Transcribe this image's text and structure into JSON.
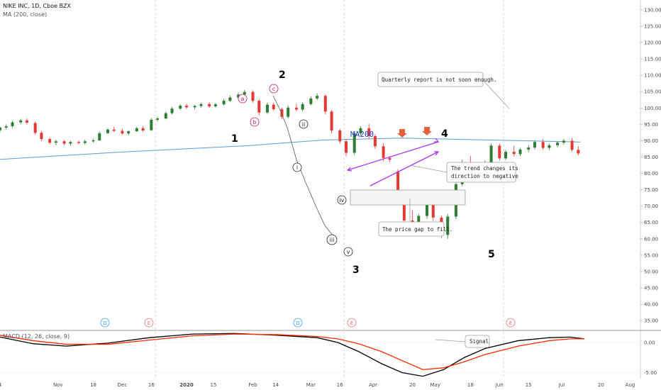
{
  "header": {
    "symbol_line": "NIKE INC, 1D, Cboe BZX",
    "ma_line": "MA (200, close)",
    "macd_line": "MACD (12, 26, close, 9)"
  },
  "chart_data": [
    {
      "type": "candlestick",
      "title": "NIKE INC, 1D, Cboe BZX",
      "ylim": [
        32,
        133
      ],
      "y_ticks": [
        "130.00",
        "125.00",
        "120.00",
        "115.00",
        "110.00",
        "105.00",
        "100.00",
        "95.00",
        "90.00",
        "85.00",
        "80.00",
        "75.00",
        "70.00",
        "65.00",
        "60.00",
        "55.00",
        "50.00",
        "45.00",
        "40.00",
        "35.00"
      ],
      "x_ticks": [
        "4",
        "Nov",
        "18",
        "Dec",
        "16",
        "2020",
        "15",
        "Feb",
        "14",
        "Mar",
        "16",
        "Apr",
        "20",
        "May",
        "18",
        "Jun",
        "15",
        "Jul",
        "20",
        "Aug"
      ],
      "x_range": [
        "2019-10-04",
        "2020-08-08"
      ],
      "candles": [
        {
          "d": "2019-10-04",
          "o": 93.2,
          "h": 94.4,
          "l": 92.6,
          "c": 94.0
        },
        {
          "d": "2019-10-07",
          "o": 94.0,
          "h": 95.0,
          "l": 93.4,
          "c": 94.4
        },
        {
          "d": "2019-10-10",
          "o": 94.4,
          "h": 96.1,
          "l": 93.9,
          "c": 95.6
        },
        {
          "d": "2019-10-14",
          "o": 95.6,
          "h": 96.7,
          "l": 95.0,
          "c": 96.2
        },
        {
          "d": "2019-10-17",
          "o": 96.2,
          "h": 96.8,
          "l": 95.0,
          "c": 95.5
        },
        {
          "d": "2019-10-21",
          "o": 95.4,
          "h": 95.9,
          "l": 91.8,
          "c": 92.4
        },
        {
          "d": "2019-10-24",
          "o": 92.4,
          "h": 92.9,
          "l": 89.9,
          "c": 90.5
        },
        {
          "d": "2019-10-28",
          "o": 90.5,
          "h": 91.0,
          "l": 88.9,
          "c": 89.4
        },
        {
          "d": "2019-10-31",
          "o": 89.4,
          "h": 90.3,
          "l": 88.6,
          "c": 89.8
        },
        {
          "d": "2019-11-04",
          "o": 89.8,
          "h": 90.2,
          "l": 88.6,
          "c": 89.1
        },
        {
          "d": "2019-11-07",
          "o": 89.1,
          "h": 90.0,
          "l": 88.5,
          "c": 89.6
        },
        {
          "d": "2019-11-11",
          "o": 89.6,
          "h": 90.0,
          "l": 88.9,
          "c": 89.3
        },
        {
          "d": "2019-11-14",
          "o": 89.3,
          "h": 90.3,
          "l": 88.8,
          "c": 89.8
        },
        {
          "d": "2019-11-18",
          "o": 89.8,
          "h": 90.6,
          "l": 89.4,
          "c": 90.1
        },
        {
          "d": "2019-11-21",
          "o": 90.1,
          "h": 92.8,
          "l": 89.9,
          "c": 92.3
        },
        {
          "d": "2019-11-25",
          "o": 92.3,
          "h": 93.8,
          "l": 92.0,
          "c": 93.4
        },
        {
          "d": "2019-11-28",
          "o": 93.4,
          "h": 94.3,
          "l": 92.6,
          "c": 93.0
        },
        {
          "d": "2019-12-02",
          "o": 93.0,
          "h": 93.6,
          "l": 91.8,
          "c": 92.2
        },
        {
          "d": "2019-12-05",
          "o": 92.2,
          "h": 93.1,
          "l": 91.6,
          "c": 92.9
        },
        {
          "d": "2019-12-09",
          "o": 92.9,
          "h": 94.3,
          "l": 92.6,
          "c": 93.8
        },
        {
          "d": "2019-12-12",
          "o": 93.8,
          "h": 94.4,
          "l": 92.7,
          "c": 93.1
        },
        {
          "d": "2019-12-16",
          "o": 93.2,
          "h": 96.9,
          "l": 93.0,
          "c": 96.4
        },
        {
          "d": "2019-12-19",
          "o": 96.4,
          "h": 97.3,
          "l": 95.9,
          "c": 96.8
        },
        {
          "d": "2019-12-23",
          "o": 96.8,
          "h": 98.9,
          "l": 96.5,
          "c": 98.4
        },
        {
          "d": "2019-12-26",
          "o": 98.4,
          "h": 100.3,
          "l": 98.0,
          "c": 99.8
        },
        {
          "d": "2019-12-30",
          "o": 99.8,
          "h": 101.2,
          "l": 99.4,
          "c": 100.7
        },
        {
          "d": "2020-01-02",
          "o": 100.7,
          "h": 101.3,
          "l": 99.7,
          "c": 100.2
        },
        {
          "d": "2020-01-06",
          "o": 100.2,
          "h": 101.0,
          "l": 99.5,
          "c": 100.6
        },
        {
          "d": "2020-01-09",
          "o": 100.6,
          "h": 101.6,
          "l": 100.1,
          "c": 101.2
        },
        {
          "d": "2020-01-13",
          "o": 101.2,
          "h": 101.8,
          "l": 100.0,
          "c": 100.5
        },
        {
          "d": "2020-01-16",
          "o": 100.5,
          "h": 101.6,
          "l": 100.1,
          "c": 101.1
        },
        {
          "d": "2020-01-20",
          "o": 101.1,
          "h": 102.7,
          "l": 100.8,
          "c": 102.2
        },
        {
          "d": "2020-01-23",
          "o": 102.2,
          "h": 103.8,
          "l": 101.9,
          "c": 103.2
        },
        {
          "d": "2020-01-27",
          "o": 103.2,
          "h": 104.7,
          "l": 102.6,
          "c": 104.1
        },
        {
          "d": "2020-01-30",
          "o": 104.1,
          "h": 105.5,
          "l": 103.7,
          "c": 104.9
        },
        {
          "d": "2020-02-03",
          "o": 104.9,
          "h": 105.4,
          "l": 101.6,
          "c": 102.2
        },
        {
          "d": "2020-02-06",
          "o": 102.2,
          "h": 102.8,
          "l": 97.7,
          "c": 98.6
        },
        {
          "d": "2020-02-10",
          "o": 98.6,
          "h": 101.6,
          "l": 98.2,
          "c": 101.0
        },
        {
          "d": "2020-02-13",
          "o": 101.0,
          "h": 101.6,
          "l": 99.1,
          "c": 99.6
        },
        {
          "d": "2020-02-17",
          "o": 99.6,
          "h": 100.1,
          "l": 96.5,
          "c": 97.3
        },
        {
          "d": "2020-02-20",
          "o": 97.3,
          "h": 100.7,
          "l": 96.8,
          "c": 100.1
        },
        {
          "d": "2020-02-24",
          "o": 100.1,
          "h": 101.3,
          "l": 99.0,
          "c": 99.5
        },
        {
          "d": "2020-02-27",
          "o": 99.5,
          "h": 101.8,
          "l": 99.0,
          "c": 101.2
        },
        {
          "d": "2020-03-02",
          "o": 101.2,
          "h": 103.6,
          "l": 100.8,
          "c": 102.9
        },
        {
          "d": "2020-03-05",
          "o": 102.9,
          "h": 104.5,
          "l": 102.5,
          "c": 103.7
        },
        {
          "d": "2020-03-09",
          "o": 103.7,
          "h": 104.2,
          "l": 98.1,
          "c": 98.9
        },
        {
          "d": "2020-03-12",
          "o": 98.9,
          "h": 99.4,
          "l": 92.2,
          "c": 93.1
        },
        {
          "d": "2020-03-16",
          "o": 93.1,
          "h": 93.6,
          "l": 89.1,
          "c": 89.8
        },
        {
          "d": "2020-03-19",
          "o": 89.8,
          "h": 90.5,
          "l": 85.2,
          "c": 86.3
        },
        {
          "d": "2020-03-23",
          "o": 86.3,
          "h": 92.9,
          "l": 85.6,
          "c": 92.2
        },
        {
          "d": "2020-03-26",
          "o": 92.2,
          "h": 94.4,
          "l": 91.6,
          "c": 93.8
        },
        {
          "d": "2020-03-30",
          "o": 93.8,
          "h": 95.1,
          "l": 90.6,
          "c": 91.4
        },
        {
          "d": "2020-04-02",
          "o": 91.4,
          "h": 92.0,
          "l": 87.5,
          "c": 88.3
        },
        {
          "d": "2020-04-06",
          "o": 88.3,
          "h": 89.3,
          "l": 83.7,
          "c": 84.7
        },
        {
          "d": "2020-04-09",
          "o": 84.7,
          "h": 85.3,
          "l": 83.5,
          "c": 84.2
        },
        {
          "d": "2020-04-13",
          "o": 80.6,
          "h": 81.2,
          "l": 73.1,
          "c": 74.1
        },
        {
          "d": "2020-04-16",
          "o": 74.1,
          "h": 74.7,
          "l": 64.8,
          "c": 65.6
        },
        {
          "d": "2020-04-20",
          "o": 65.6,
          "h": 68.7,
          "l": 61.2,
          "c": 62.0
        },
        {
          "d": "2020-04-23",
          "o": 62.0,
          "h": 67.6,
          "l": 61.2,
          "c": 67.0
        },
        {
          "d": "2020-04-27",
          "o": 67.0,
          "h": 73.2,
          "l": 66.1,
          "c": 72.4
        },
        {
          "d": "2020-04-30",
          "o": 72.4,
          "h": 73.0,
          "l": 65.5,
          "c": 66.5
        },
        {
          "d": "2020-05-04",
          "o": 66.5,
          "h": 67.1,
          "l": 60.2,
          "c": 61.2
        },
        {
          "d": "2020-05-07",
          "o": 61.2,
          "h": 67.6,
          "l": 60.0,
          "c": 66.8
        },
        {
          "d": "2020-05-11",
          "o": 66.8,
          "h": 77.6,
          "l": 66.0,
          "c": 76.7
        },
        {
          "d": "2020-05-14",
          "o": 76.7,
          "h": 84.2,
          "l": 76.1,
          "c": 83.4
        },
        {
          "d": "2020-05-18",
          "o": 83.4,
          "h": 85.3,
          "l": 80.8,
          "c": 81.5
        },
        {
          "d": "2020-05-21",
          "o": 81.5,
          "h": 82.2,
          "l": 78.6,
          "c": 79.4
        },
        {
          "d": "2020-05-25",
          "o": 79.4,
          "h": 84.0,
          "l": 78.8,
          "c": 83.3
        },
        {
          "d": "2020-05-28",
          "o": 83.3,
          "h": 89.2,
          "l": 82.7,
          "c": 88.5
        },
        {
          "d": "2020-06-01",
          "o": 88.5,
          "h": 89.1,
          "l": 83.9,
          "c": 84.6
        },
        {
          "d": "2020-06-04",
          "o": 84.6,
          "h": 87.2,
          "l": 84.0,
          "c": 86.6
        },
        {
          "d": "2020-06-08",
          "o": 86.6,
          "h": 88.4,
          "l": 85.2,
          "c": 85.9
        },
        {
          "d": "2020-06-11",
          "o": 85.9,
          "h": 87.8,
          "l": 85.3,
          "c": 87.3
        },
        {
          "d": "2020-06-15",
          "o": 87.3,
          "h": 88.6,
          "l": 86.5,
          "c": 87.9
        },
        {
          "d": "2020-06-18",
          "o": 87.9,
          "h": 90.1,
          "l": 87.3,
          "c": 89.6
        },
        {
          "d": "2020-06-22",
          "o": 89.6,
          "h": 90.5,
          "l": 87.2,
          "c": 87.8
        },
        {
          "d": "2020-06-25",
          "o": 87.8,
          "h": 89.1,
          "l": 87.1,
          "c": 88.6
        },
        {
          "d": "2020-06-29",
          "o": 88.6,
          "h": 89.9,
          "l": 88.0,
          "c": 89.4
        },
        {
          "d": "2020-07-02",
          "o": 89.4,
          "h": 90.6,
          "l": 88.8,
          "c": 90.0
        },
        {
          "d": "2020-07-06",
          "o": 90.0,
          "h": 90.8,
          "l": 86.6,
          "c": 87.2
        },
        {
          "d": "2020-07-09",
          "o": 87.2,
          "h": 88.3,
          "l": 85.5,
          "c": 86.1
        }
      ]
    },
    {
      "type": "line",
      "title": "MACD (12, 26, close, 9)",
      "ylim": [
        -6.0,
        2.0
      ],
      "y_ticks": [
        "0.00",
        "-5.00"
      ],
      "series": [
        {
          "color": "#000000",
          "points": [
            [
              "2019-10-04",
              0.9
            ],
            [
              "2019-10-20",
              -0.2
            ],
            [
              "2019-11-05",
              -0.6
            ],
            [
              "2019-11-25",
              -0.1
            ],
            [
              "2019-12-15",
              0.8
            ],
            [
              "2020-01-05",
              1.4
            ],
            [
              "2020-01-25",
              1.5
            ],
            [
              "2020-02-15",
              1.2
            ],
            [
              "2020-03-05",
              0.8
            ],
            [
              "2020-03-15",
              0.0
            ],
            [
              "2020-03-25",
              -1.5
            ],
            [
              "2020-04-05",
              -3.5
            ],
            [
              "2020-04-15",
              -5.0
            ],
            [
              "2020-04-25",
              -5.6
            ],
            [
              "2020-05-05",
              -4.5
            ],
            [
              "2020-05-15",
              -2.5
            ],
            [
              "2020-05-25",
              -1.0
            ],
            [
              "2020-06-10",
              0.3
            ],
            [
              "2020-06-25",
              0.8
            ],
            [
              "2020-07-05",
              0.9
            ],
            [
              "2020-07-12",
              0.6
            ]
          ]
        },
        {
          "color": "#ff2a00",
          "points": [
            [
              "2019-10-04",
              1.2
            ],
            [
              "2019-10-20",
              0.3
            ],
            [
              "2019-11-05",
              -0.3
            ],
            [
              "2019-11-25",
              -0.3
            ],
            [
              "2019-12-15",
              0.4
            ],
            [
              "2020-01-05",
              1.1
            ],
            [
              "2020-01-25",
              1.4
            ],
            [
              "2020-02-15",
              1.3
            ],
            [
              "2020-03-05",
              1.0
            ],
            [
              "2020-03-15",
              0.6
            ],
            [
              "2020-03-25",
              -0.2
            ],
            [
              "2020-04-05",
              -1.5
            ],
            [
              "2020-04-15",
              -3.0
            ],
            [
              "2020-04-25",
              -4.5
            ],
            [
              "2020-05-05",
              -4.2
            ],
            [
              "2020-05-15",
              -3.2
            ],
            [
              "2020-05-25",
              -2.0
            ],
            [
              "2020-06-10",
              -0.6
            ],
            [
              "2020-06-25",
              0.3
            ],
            [
              "2020-07-05",
              0.6
            ],
            [
              "2020-07-12",
              0.6
            ]
          ]
        }
      ]
    }
  ],
  "indicators": {
    "ma200": [
      [
        "2019-10-04",
        84.3
      ],
      [
        "2019-12-01",
        86.5
      ],
      [
        "2020-02-01",
        88.5
      ],
      [
        "2020-03-08",
        90.2
      ],
      [
        "2020-04-15",
        90.8
      ],
      [
        "2020-05-20",
        90.3
      ],
      [
        "2020-07-10",
        89.6
      ]
    ]
  },
  "annotations": {
    "wave_1": "1",
    "wave_2": "2",
    "wave_3": "3",
    "wave_4": "4",
    "wave_5": "5",
    "sub_a": "a",
    "sub_b": "b",
    "sub_c": "c",
    "sub_i": "i",
    "sub_ii": "ii",
    "sub_iii": "iii",
    "sub_iv": "iv",
    "sub_v": "v",
    "ma_label": "MA200",
    "note_quarterly": "Quarterly report is not soon enough.",
    "note_trend_l1": "The trend changes its",
    "note_trend_l2": "direction to negative",
    "note_gap": "The price gap to fill.",
    "note_signal": "Signal",
    "event_d": "D",
    "event_e": "E"
  },
  "colors": {
    "up": "#2e7d32",
    "down": "#e53935",
    "ma": "#5b9bd5",
    "channel": "#a633ff",
    "arrow": "#e5603c",
    "event_d": "#3aa0e8",
    "event_e": "#e57373",
    "wave_sub": "#c2185b"
  }
}
